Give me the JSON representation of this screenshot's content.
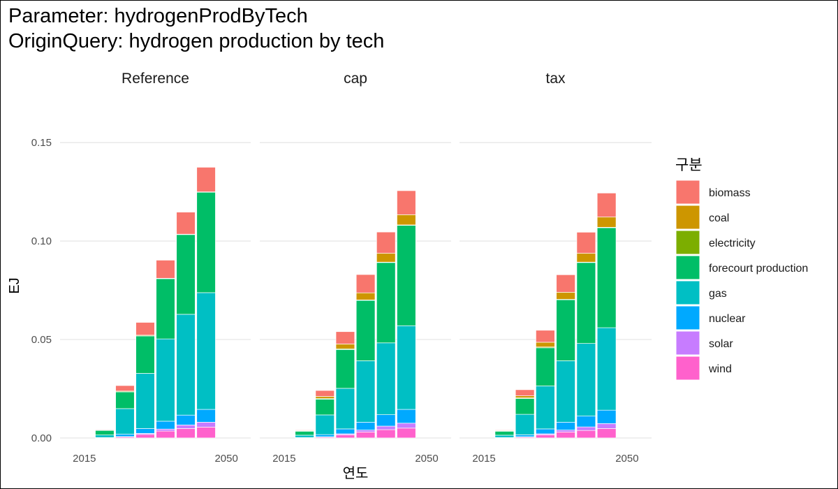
{
  "title_line1": "Parameter: hydrogenProdByTech",
  "title_line2": "OriginQuery: hydrogen production by tech",
  "chart_data": {
    "type": "bar",
    "stacked": true,
    "facets": [
      "Reference",
      "cap",
      "tax"
    ],
    "xlabel": "연도",
    "ylabel": "EJ",
    "ylim": [
      -0.005,
      0.16
    ],
    "yticks": [
      0.0,
      0.05,
      0.1,
      0.15
    ],
    "ytick_labels": [
      "0.00",
      "0.05",
      "0.10",
      "0.15"
    ],
    "xlim": [
      2009,
      2056
    ],
    "xticks": [
      2015,
      2050
    ],
    "xtick_labels": [
      "2015",
      "2050"
    ],
    "x": [
      2020,
      2025,
      2030,
      2035,
      2040,
      2045
    ],
    "grid": true,
    "legend_title": "구분",
    "legend_position": "right",
    "tech": [
      "biomass",
      "coal",
      "electricity",
      "forecourt production",
      "gas",
      "nuclear",
      "solar",
      "wind"
    ],
    "colors": {
      "biomass": "#F8766D",
      "coal": "#CD9600",
      "electricity": "#7CAE00",
      "forecourt production": "#00BE67",
      "gas": "#00BFC4",
      "nuclear": "#00A9FF",
      "solar": "#C77CFF",
      "wind": "#FF61CC"
    },
    "values": {
      "Reference": {
        "wind": [
          0.0001,
          0.0006,
          0.0018,
          0.0035,
          0.0048,
          0.0055
        ],
        "solar": [
          0.0,
          0.0001,
          0.0005,
          0.001,
          0.0018,
          0.0025
        ],
        "nuclear": [
          0.0001,
          0.0012,
          0.0025,
          0.004,
          0.005,
          0.0065
        ],
        "gas": [
          0.0013,
          0.013,
          0.028,
          0.0418,
          0.0512,
          0.0593
        ],
        "forecourt production": [
          0.0023,
          0.0085,
          0.019,
          0.0306,
          0.0405,
          0.051
        ],
        "electricity": [
          0.0002,
          0.0004,
          0.0004,
          0.0002,
          0.0002,
          0.0002
        ],
        "coal": [
          0.0,
          0.0,
          0.0,
          0.0,
          0.0,
          0.0
        ],
        "biomass": [
          0.0003,
          0.0028,
          0.0065,
          0.0092,
          0.0112,
          0.0125
        ]
      },
      "cap": {
        "wind": [
          0.0001,
          0.0005,
          0.0016,
          0.003,
          0.0042,
          0.005
        ],
        "solar": [
          0.0,
          0.0001,
          0.0005,
          0.001,
          0.0018,
          0.0025
        ],
        "nuclear": [
          0.0001,
          0.0011,
          0.0025,
          0.004,
          0.0058,
          0.007
        ],
        "gas": [
          0.0012,
          0.01,
          0.0206,
          0.0312,
          0.0365,
          0.0425
        ],
        "forecourt production": [
          0.002,
          0.008,
          0.0197,
          0.0307,
          0.0408,
          0.051
        ],
        "electricity": [
          0.0002,
          0.0004,
          0.0004,
          0.0002,
          0.0002,
          0.0002
        ],
        "coal": [
          0.0003,
          0.001,
          0.0024,
          0.0036,
          0.0045,
          0.0052
        ],
        "biomass": [
          0.0003,
          0.003,
          0.0063,
          0.0093,
          0.0108,
          0.0122
        ]
      },
      "tax": {
        "wind": [
          0.0001,
          0.0005,
          0.0016,
          0.003,
          0.0038,
          0.0048
        ],
        "solar": [
          0.0,
          0.0001,
          0.0005,
          0.001,
          0.0018,
          0.0025
        ],
        "nuclear": [
          0.0001,
          0.001,
          0.0025,
          0.004,
          0.0055,
          0.0068
        ],
        "gas": [
          0.0012,
          0.0104,
          0.0218,
          0.0312,
          0.0369,
          0.0419
        ],
        "forecourt production": [
          0.002,
          0.008,
          0.0194,
          0.031,
          0.0411,
          0.0508
        ],
        "electricity": [
          0.0002,
          0.0004,
          0.0004,
          0.0002,
          0.0002,
          0.0002
        ],
        "coal": [
          0.0003,
          0.001,
          0.0024,
          0.0036,
          0.0045,
          0.0052
        ],
        "biomass": [
          0.0003,
          0.0031,
          0.0061,
          0.0089,
          0.0107,
          0.0122
        ]
      }
    }
  }
}
